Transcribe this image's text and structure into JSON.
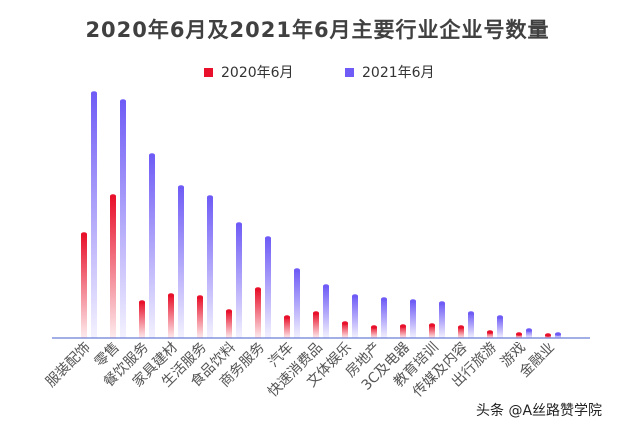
{
  "chart_data": {
    "type": "bar",
    "title": "2020年6月及2021年6月主要行业企业号数量",
    "legend_position": "top",
    "grid": false,
    "y_axis_shown": false,
    "categories": [
      "服装配饰",
      "零售",
      "餐饮服务",
      "家具建材",
      "生活服务",
      "食品饮料",
      "商务服务",
      "汽车",
      "快速消费品",
      "文体娱乐",
      "房地产",
      "3C及电器",
      "教育培训",
      "传媒及内容",
      "出行旅游",
      "游戏",
      "金融业"
    ],
    "series": [
      {
        "name": "2020年6月",
        "color": "#e8102a",
        "values": [
          104,
          142,
          36,
          43,
          41,
          27,
          49,
          21,
          25,
          15,
          11,
          12,
          13,
          11,
          6,
          4,
          3
        ]
      },
      {
        "name": "2021年6月",
        "color": "#6f5cf6",
        "values": [
          245,
          237,
          183,
          151,
          141,
          114,
          100,
          68,
          52,
          42,
          39,
          37,
          35,
          25,
          21,
          8,
          4
        ]
      }
    ]
  },
  "watermark": "头条 @A丝路赞学院"
}
